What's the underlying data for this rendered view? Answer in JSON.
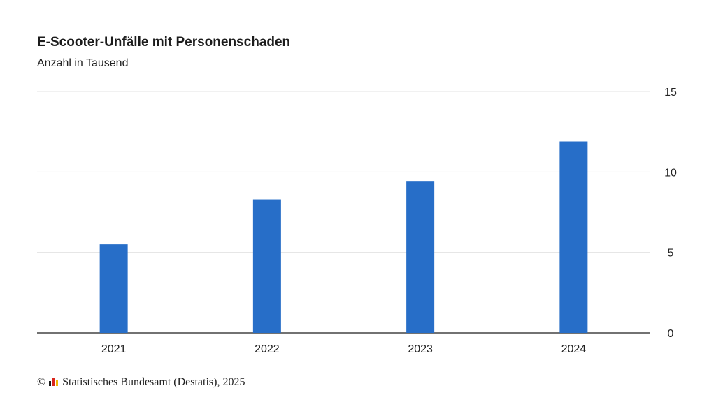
{
  "chart_data": {
    "type": "bar",
    "title": "E-Scooter-Unfälle mit Personenschaden",
    "subtitle": "Anzahl in Tausend",
    "categories": [
      "2021",
      "2022",
      "2023",
      "2024"
    ],
    "values": [
      5.5,
      8.3,
      9.4,
      11.9
    ],
    "ylim": [
      0,
      15
    ],
    "yticks": [
      "0",
      "5",
      "10",
      "15"
    ],
    "y_axis_side": "right",
    "grid": true,
    "bar_color": "#276ec8"
  },
  "footer": {
    "copyright_symbol": "©",
    "source": "Statistisches Bundesamt (Destatis), 2025"
  },
  "logo_colors": [
    "#1c1c1c",
    "#d9261c",
    "#f2b705"
  ]
}
